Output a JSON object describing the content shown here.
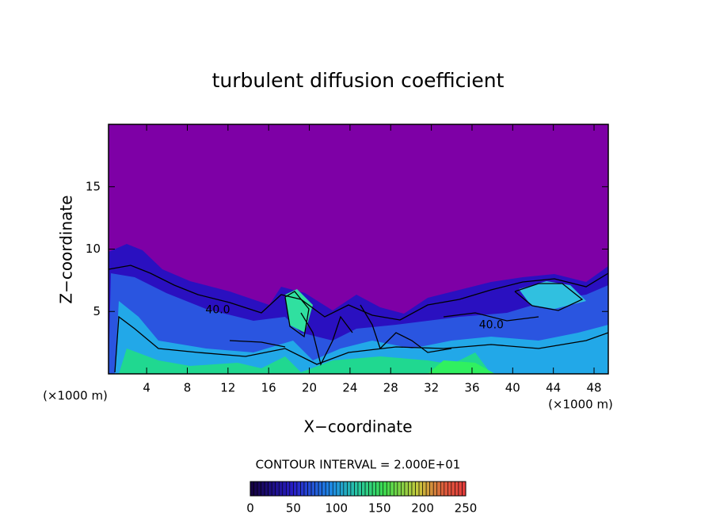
{
  "chart_data": {
    "type": "contour",
    "title": "turbulent diffusion coefficient",
    "xlabel": "X−coordinate",
    "ylabel": "Z−coordinate",
    "x_unit_label": "(×1000 m)",
    "contour_interval_label": "CONTOUR INTERVAL = 2.000E+01",
    "xlim": [
      0.25,
      49.4
    ],
    "ylim": [
      0,
      20
    ],
    "xticks": [
      4,
      8,
      12,
      16,
      20,
      24,
      28,
      32,
      36,
      40,
      44,
      48
    ],
    "yticks": [
      5,
      10,
      15
    ],
    "colorbar": {
      "lim": [
        0,
        250
      ],
      "ticks": [
        0,
        50,
        100,
        150,
        200,
        250
      ]
    },
    "contour_labels": [
      {
        "text": "40.0",
        "x": 11,
        "y": 5.1
      },
      {
        "text": "40.0",
        "x": 37.9,
        "y": 3.9
      }
    ]
  }
}
